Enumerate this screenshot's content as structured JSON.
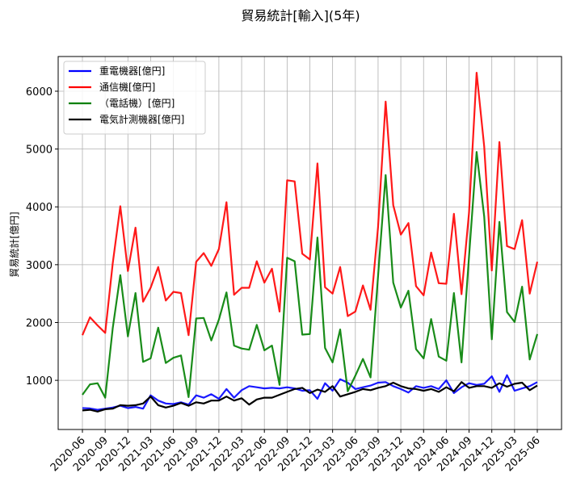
{
  "chart_data": {
    "type": "line",
    "title": "貿易統計[輸入](5年)",
    "xlabel": "",
    "ylabel": "貿易統計[億円]",
    "ylim": [
      150,
      6600
    ],
    "yticks": [
      1000,
      2000,
      3000,
      4000,
      5000,
      6000
    ],
    "grid": true,
    "legend_position": "top-left",
    "x": [
      "2020-06",
      "2020-07",
      "2020-08",
      "2020-09",
      "2020-10",
      "2020-11",
      "2020-12",
      "2021-01",
      "2021-02",
      "2021-03",
      "2021-04",
      "2021-05",
      "2021-06",
      "2021-07",
      "2021-08",
      "2021-09",
      "2021-10",
      "2021-11",
      "2021-12",
      "2022-01",
      "2022-02",
      "2022-03",
      "2022-04",
      "2022-05",
      "2022-06",
      "2022-07",
      "2022-08",
      "2022-09",
      "2022-10",
      "2022-11",
      "2022-12",
      "2023-01",
      "2023-02",
      "2023-03",
      "2023-04",
      "2023-05",
      "2023-06",
      "2023-07",
      "2023-08",
      "2023-09",
      "2023-10",
      "2023-11",
      "2023-12",
      "2024-01",
      "2024-02",
      "2024-03",
      "2024-04",
      "2024-05",
      "2024-06",
      "2024-07",
      "2024-08",
      "2024-09",
      "2024-10",
      "2024-11",
      "2024-12",
      "2025-01",
      "2025-02",
      "2025-03",
      "2025-04",
      "2025-05",
      "2025-06"
    ],
    "xtick_labels": [
      "2020-06",
      "2020-09",
      "2020-12",
      "2021-03",
      "2021-06",
      "2021-09",
      "2021-12",
      "2022-03",
      "2022-06",
      "2022-09",
      "2022-12",
      "2023-03",
      "2023-06",
      "2023-09",
      "2023-12",
      "2024-03",
      "2024-06",
      "2024-09",
      "2024-12",
      "2025-03",
      "2025-06"
    ],
    "series": [
      {
        "name": "重電機器[億円]",
        "color": "#0000ff",
        "values": [
          520,
          515,
          490,
          510,
          530,
          560,
          520,
          540,
          510,
          740,
          650,
          600,
          590,
          620,
          580,
          740,
          700,
          760,
          680,
          850,
          700,
          830,
          900,
          880,
          860,
          870,
          860,
          880,
          860,
          820,
          830,
          680,
          950,
          820,
          1020,
          960,
          850,
          880,
          910,
          960,
          970,
          900,
          850,
          790,
          900,
          870,
          900,
          850,
          1000,
          780,
          880,
          950,
          920,
          940,
          1070,
          800,
          1090,
          820,
          860,
          900,
          970
        ]
      },
      {
        "name": "通信機[億円]",
        "color": "#ff0000",
        "values": [
          1780,
          2090,
          1950,
          1820,
          3020,
          4010,
          2890,
          3640,
          2360,
          2600,
          2960,
          2380,
          2530,
          2510,
          1780,
          3050,
          3200,
          2980,
          3270,
          4080,
          2480,
          2600,
          2600,
          3060,
          2690,
          2930,
          2190,
          4460,
          4440,
          3190,
          3090,
          4750,
          2610,
          2500,
          2960,
          2110,
          2190,
          2640,
          2220,
          3650,
          5820,
          4030,
          3520,
          3720,
          2630,
          2470,
          3210,
          2680,
          2670,
          3880,
          2490,
          3900,
          6320,
          5040,
          2900,
          5120,
          3320,
          3270,
          3770,
          2500,
          3050
        ]
      },
      {
        "name": "（電話機）[億円]",
        "color": "#008000",
        "values": [
          750,
          930,
          950,
          700,
          1900,
          2820,
          1760,
          2510,
          1320,
          1380,
          1910,
          1300,
          1390,
          1430,
          710,
          2070,
          2080,
          1690,
          2050,
          2520,
          1600,
          1550,
          1530,
          1960,
          1520,
          1600,
          920,
          3120,
          3060,
          1790,
          1800,
          3470,
          1560,
          1310,
          1880,
          810,
          1080,
          1370,
          1050,
          2800,
          4550,
          2690,
          2260,
          2550,
          1540,
          1380,
          2060,
          1410,
          1340,
          2510,
          1310,
          3140,
          4950,
          3830,
          1710,
          3740,
          2180,
          2010,
          2620,
          1360,
          1800
        ]
      },
      {
        "name": "電気計測機器[億円]",
        "color": "#000000",
        "values": [
          480,
          490,
          460,
          500,
          510,
          570,
          560,
          570,
          600,
          720,
          570,
          530,
          560,
          610,
          560,
          620,
          600,
          650,
          650,
          720,
          650,
          690,
          580,
          670,
          700,
          700,
          750,
          800,
          850,
          870,
          780,
          840,
          800,
          900,
          720,
          760,
          800,
          850,
          830,
          870,
          900,
          960,
          900,
          860,
          850,
          820,
          850,
          800,
          880,
          810,
          970,
          870,
          900,
          900,
          870,
          950,
          890,
          940,
          960,
          830,
          910
        ]
      }
    ]
  }
}
